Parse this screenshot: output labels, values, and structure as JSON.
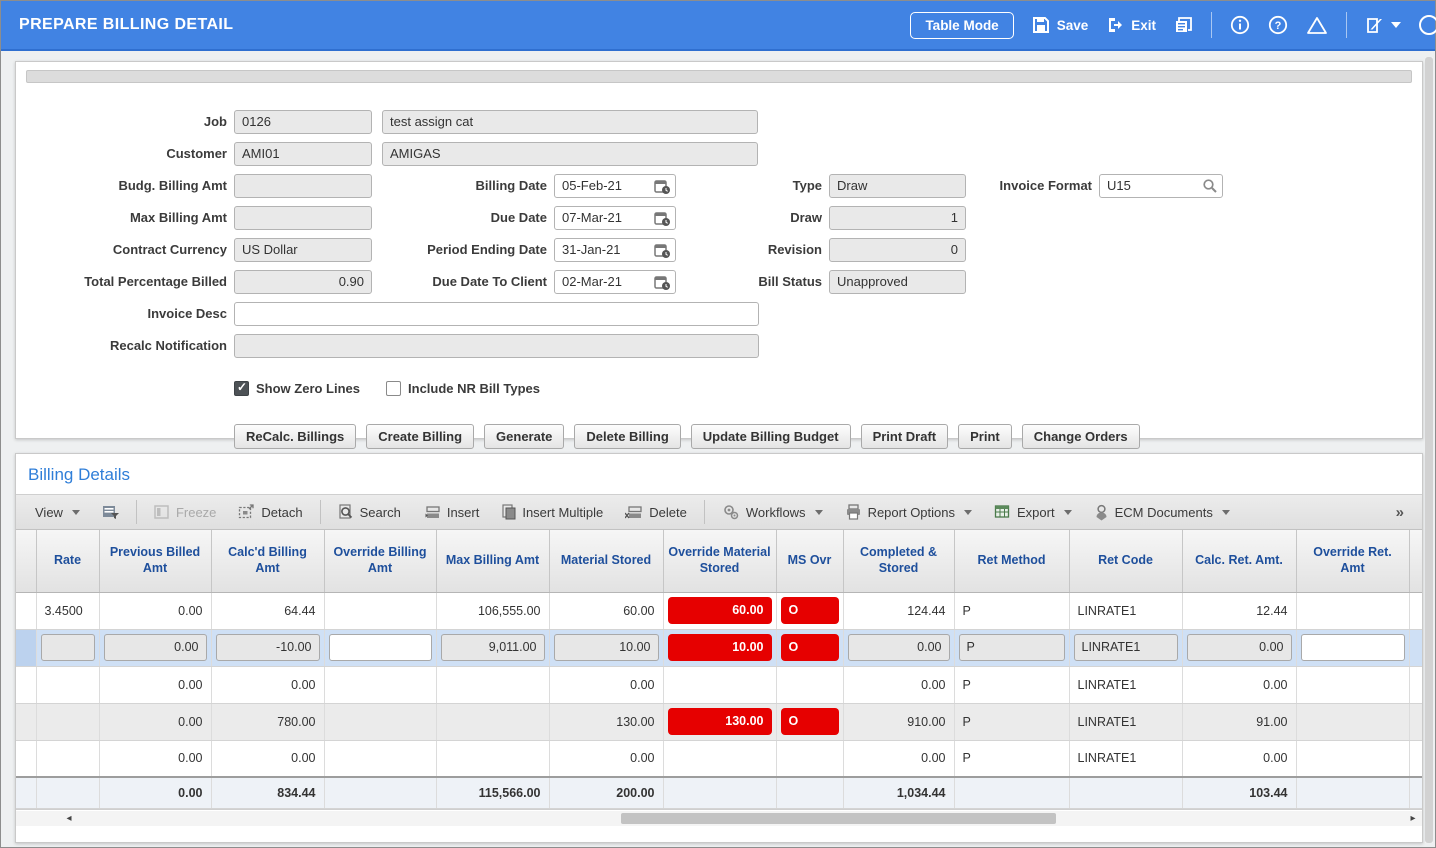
{
  "titlebar": {
    "title": "PREPARE BILLING DETAIL",
    "table_mode_label": "Table Mode",
    "save_label": "Save",
    "exit_label": "Exit",
    "icons": [
      "copy-icon",
      "info-icon",
      "help-icon",
      "warning-icon",
      "edit-icon",
      "dropdown-caret"
    ]
  },
  "colors": {
    "titlebar_blue": "#4183e3",
    "section_title_blue": "#2f7ed8",
    "header_text_blue": "#1e4f9c",
    "alert_red": "#e60000",
    "selected_row": "#cfe0f5",
    "band_row": "#ebebeb"
  },
  "form": {
    "job_label": "Job",
    "job_code": "0126",
    "job_desc": "test assign cat",
    "customer_label": "Customer",
    "customer_code": "AMI01",
    "customer_desc": "AMIGAS",
    "budg_billing_amt_label": "Budg. Billing Amt",
    "budg_billing_amt": "",
    "max_billing_amt_label": "Max Billing Amt",
    "max_billing_amt": "",
    "contract_currency_label": "Contract Currency",
    "contract_currency": "US Dollar",
    "total_percentage_billed_label": "Total Percentage Billed",
    "total_percentage_billed": "0.90",
    "billing_date_label": "Billing Date",
    "billing_date": "05-Feb-21",
    "due_date_label": "Due Date",
    "due_date": "07-Mar-21",
    "period_ending_date_label": "Period Ending Date",
    "period_ending_date": "31-Jan-21",
    "due_date_to_client_label": "Due Date To Client",
    "due_date_to_client": "02-Mar-21",
    "type_label": "Type",
    "type_value": "Draw",
    "draw_label": "Draw",
    "draw_value": "1",
    "revision_label": "Revision",
    "revision_value": "0",
    "bill_status_label": "Bill Status",
    "bill_status_value": "Unapproved",
    "invoice_format_label": "Invoice Format",
    "invoice_format_value": "U15",
    "invoice_desc_label": "Invoice Desc",
    "invoice_desc_value": "",
    "recalc_notification_label": "Recalc Notification",
    "recalc_notification_value": "",
    "show_zero_lines_label": "Show Zero Lines",
    "show_zero_lines_checked": true,
    "include_nr_bill_types_label": "Include NR Bill Types",
    "include_nr_bill_types_checked": false,
    "action_buttons": [
      "ReCalc. Billings",
      "Create Billing",
      "Generate",
      "Delete Billing",
      "Update Billing Budget",
      "Print Draft",
      "Print",
      "Change Orders"
    ]
  },
  "billing_details": {
    "title": "Billing Details",
    "toolbar": {
      "view_label": "View",
      "freeze_label": "Freeze",
      "detach_label": "Detach",
      "search_label": "Search",
      "insert_label": "Insert",
      "insert_multiple_label": "Insert Multiple",
      "delete_label": "Delete",
      "workflows_label": "Workflows",
      "report_options_label": "Report Options",
      "export_label": "Export",
      "ecm_documents_label": "ECM Documents",
      "overflow_label": "»"
    },
    "table": {
      "columns": [
        "Rate",
        "Previous Billed Amt",
        "Calc'd Billing Amt",
        "Override Billing Amt",
        "Max Billing Amt",
        "Material Stored",
        "Override Material Stored",
        "MS Ovr",
        "Completed & Stored",
        "Ret Method",
        "Ret Code",
        "Calc. Ret. Amt.",
        "Override Ret. Amt"
      ],
      "rows": [
        {
          "style": "plain",
          "cells": [
            [
              "3.4500",
              ""
            ],
            [
              "0.00",
              ""
            ],
            [
              "64.44",
              ""
            ],
            [
              "",
              ""
            ],
            [
              "106,555.00",
              ""
            ],
            [
              "60.00",
              ""
            ],
            [
              "60.00",
              "red"
            ],
            [
              "O",
              "red"
            ],
            [
              "124.44",
              ""
            ],
            [
              "P",
              ""
            ],
            [
              "LINRATE1",
              ""
            ],
            [
              "12.44",
              ""
            ],
            [
              "",
              ""
            ]
          ]
        },
        {
          "style": "selected",
          "cells": [
            [
              "",
              "gray"
            ],
            [
              "0.00",
              "gray"
            ],
            [
              "-10.00",
              "gray"
            ],
            [
              "",
              "white"
            ],
            [
              "9,011.00",
              "gray"
            ],
            [
              "10.00",
              "gray"
            ],
            [
              "10.00",
              "red"
            ],
            [
              "O",
              "red"
            ],
            [
              "0.00",
              "gray"
            ],
            [
              "P",
              "gray"
            ],
            [
              "LINRATE1",
              "gray"
            ],
            [
              "0.00",
              "gray"
            ],
            [
              "",
              "white"
            ]
          ]
        },
        {
          "style": "plain",
          "cells": [
            [
              "",
              ""
            ],
            [
              "0.00",
              ""
            ],
            [
              "0.00",
              ""
            ],
            [
              "",
              ""
            ],
            [
              "",
              ""
            ],
            [
              "0.00",
              ""
            ],
            [
              "",
              ""
            ],
            [
              "",
              ""
            ],
            [
              "0.00",
              ""
            ],
            [
              "P",
              ""
            ],
            [
              "LINRATE1",
              ""
            ],
            [
              "0.00",
              ""
            ],
            [
              "",
              ""
            ]
          ]
        },
        {
          "style": "band",
          "cells": [
            [
              "",
              ""
            ],
            [
              "0.00",
              ""
            ],
            [
              "780.00",
              ""
            ],
            [
              "",
              ""
            ],
            [
              "",
              ""
            ],
            [
              "130.00",
              ""
            ],
            [
              "130.00",
              "red"
            ],
            [
              "O",
              "red"
            ],
            [
              "910.00",
              ""
            ],
            [
              "P",
              ""
            ],
            [
              "LINRATE1",
              ""
            ],
            [
              "91.00",
              ""
            ],
            [
              "",
              ""
            ]
          ]
        },
        {
          "style": "plain",
          "cells": [
            [
              "",
              ""
            ],
            [
              "0.00",
              ""
            ],
            [
              "0.00",
              ""
            ],
            [
              "",
              ""
            ],
            [
              "",
              ""
            ],
            [
              "0.00",
              ""
            ],
            [
              "",
              ""
            ],
            [
              "",
              ""
            ],
            [
              "0.00",
              ""
            ],
            [
              "P",
              ""
            ],
            [
              "LINRATE1",
              ""
            ],
            [
              "0.00",
              ""
            ],
            [
              "",
              ""
            ]
          ]
        }
      ],
      "totals": [
        [
          "",
          ""
        ],
        [
          "0.00",
          ""
        ],
        [
          "834.44",
          ""
        ],
        [
          "",
          ""
        ],
        [
          "115,566.00",
          ""
        ],
        [
          "200.00",
          ""
        ],
        [
          "",
          ""
        ],
        [
          "",
          ""
        ],
        [
          "1,034.44",
          ""
        ],
        [
          "",
          ""
        ],
        [
          "",
          ""
        ],
        [
          "103.44",
          ""
        ],
        [
          "",
          ""
        ]
      ]
    }
  }
}
